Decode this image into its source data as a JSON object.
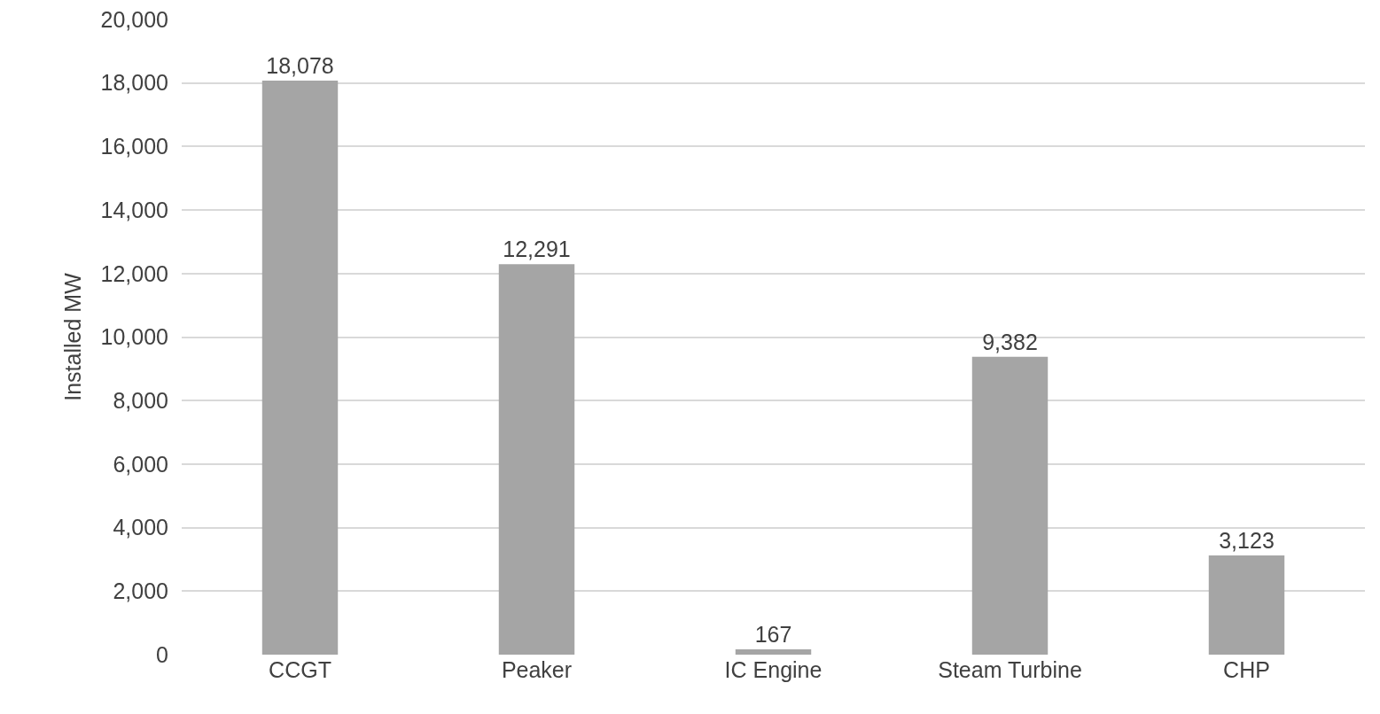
{
  "chart_data": {
    "type": "bar",
    "ylabel": "Installed MW",
    "categories": [
      "CCGT",
      "Peaker",
      "IC Engine",
      "Steam Turbine",
      "CHP"
    ],
    "values": [
      18078,
      12291,
      167,
      9382,
      3123
    ],
    "color": "#a5a5a5",
    "ylim": [
      0,
      20000
    ],
    "yticks": [
      {
        "value": 0,
        "label": "0"
      },
      {
        "value": 2000,
        "label": "2,000"
      },
      {
        "value": 4000,
        "label": "4,000"
      },
      {
        "value": 6000,
        "label": "6,000"
      },
      {
        "value": 8000,
        "label": "8,000"
      },
      {
        "value": 10000,
        "label": "10,000"
      },
      {
        "value": 12000,
        "label": "12,000"
      },
      {
        "value": 14000,
        "label": "14,000"
      },
      {
        "value": 16000,
        "label": "16,000"
      },
      {
        "value": 18000,
        "label": "18,000"
      },
      {
        "value": 20000,
        "label": "20,000"
      }
    ],
    "value_labels": [
      "18,078",
      "12,291",
      "167",
      "9,382",
      "3,123"
    ],
    "grid": "y"
  }
}
